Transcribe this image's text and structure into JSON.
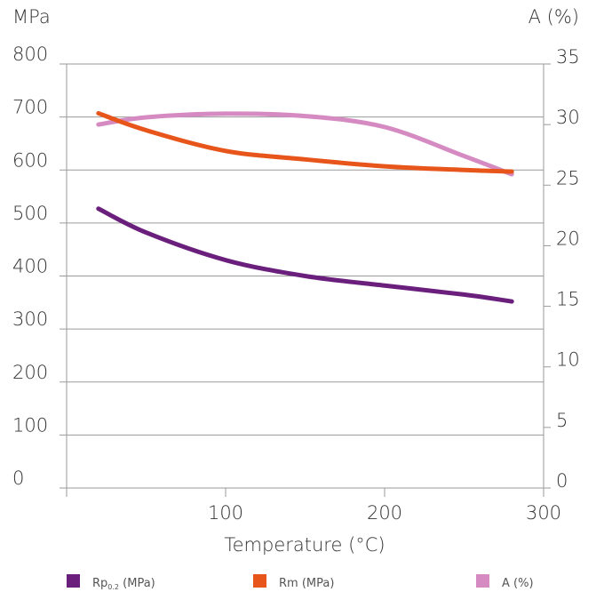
{
  "chart_data": {
    "type": "line",
    "xlabel": "Temperature (°C)",
    "ylabel_left": "MPa",
    "ylabel_right": "A (%)",
    "xlim": [
      0,
      300
    ],
    "ylim_left": [
      0,
      800
    ],
    "ylim_right": [
      0,
      35
    ],
    "x_ticks": [
      "100",
      "200",
      "300"
    ],
    "y_left_ticks": [
      "0",
      "100",
      "200",
      "300",
      "400",
      "500",
      "600",
      "700",
      "800"
    ],
    "y_right_ticks": [
      "0",
      "5",
      "10",
      "15",
      "20",
      "25",
      "30",
      "35"
    ],
    "grid": true,
    "legend_position": "bottom",
    "series": [
      {
        "name": "Rp",
        "name_sub": "0.2",
        "name_suffix": " (MPa)",
        "axis": "left",
        "color": "#6b1f7c",
        "x": [
          20,
          50,
          100,
          150,
          200,
          250,
          280
        ],
        "y": [
          527,
          482,
          430,
          400,
          382,
          365,
          352
        ]
      },
      {
        "name": "Rm (MPa)",
        "axis": "left",
        "color": "#e8551b",
        "x": [
          20,
          50,
          100,
          150,
          200,
          250,
          280
        ],
        "y": [
          707,
          675,
          636,
          620,
          607,
          600,
          597
        ]
      },
      {
        "name": "A (%)",
        "axis": "right",
        "color": "#d58bc2",
        "x": [
          20,
          50,
          100,
          150,
          200,
          250,
          280
        ],
        "y": [
          30.0,
          30.6,
          30.9,
          30.7,
          29.8,
          27.4,
          25.9
        ]
      }
    ]
  }
}
